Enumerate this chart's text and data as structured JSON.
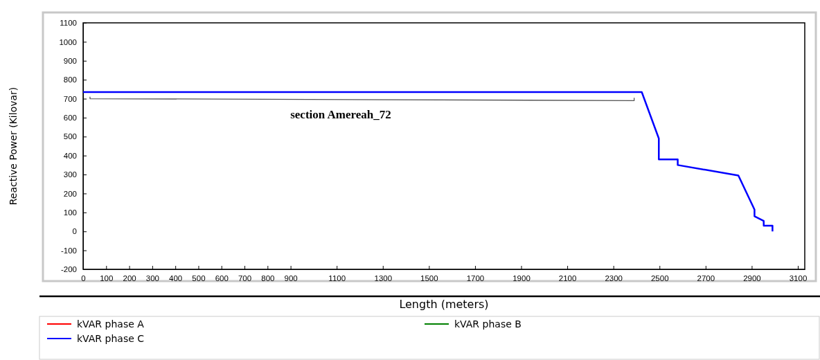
{
  "chart_data": {
    "type": "line",
    "xlabel": "Length (meters)",
    "ylabel": "Reactive Power (Kilovar)",
    "xlim": [
      0,
      3130
    ],
    "ylim": [
      -200,
      1100
    ],
    "xticks": [
      0,
      100,
      200,
      300,
      400,
      500,
      600,
      700,
      800,
      900,
      1100,
      1300,
      1500,
      1700,
      1900,
      2100,
      2300,
      2500,
      2700,
      2900,
      3100
    ],
    "yticks": [
      -200,
      -100,
      0,
      100,
      200,
      300,
      400,
      500,
      600,
      700,
      800,
      900,
      1000,
      1100
    ],
    "grid": false,
    "legend": "bottom",
    "marker": "none",
    "line_style": "solid",
    "annotations": [
      "section Amereah_72"
    ],
    "series": [
      {
        "color": "#555555",
        "x": [
          30,
          30,
          2390,
          2390
        ],
        "values": [
          710,
          700,
          690,
          705
        ]
      },
      {
        "name": "kVAR phase A",
        "color": "#ff0000"
      },
      {
        "name": "kVAR phase B",
        "color": "#008000"
      },
      {
        "name": "kVAR phase C",
        "color": "#0000ff",
        "x": [
          0,
          2423,
          2497,
          2497,
          2579,
          2579,
          2842,
          2912,
          2912,
          2952,
          2952,
          2990,
          2990
        ],
        "values": [
          735,
          735,
          490,
          380,
          380,
          350,
          295,
          115,
          80,
          55,
          30,
          30,
          0
        ]
      }
    ]
  }
}
